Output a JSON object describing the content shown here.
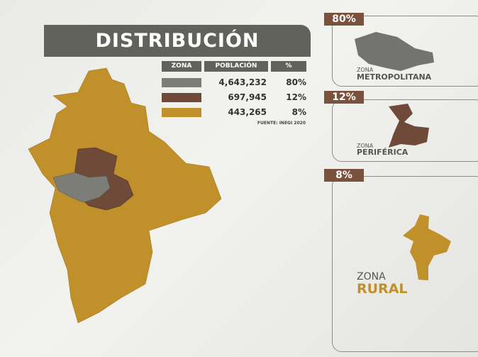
{
  "title": "DISTRIBUCIÓN",
  "table": {
    "header": [
      "ZONA",
      "POBLACIÓN",
      "%"
    ],
    "rows": [
      [
        "4,643,232",
        "80%"
      ],
      [
        "697,945",
        "12%"
      ],
      [
        "443,265",
        "8%"
      ]
    ],
    "source": "FUENTE: INEGI 2020"
  },
  "panels": [
    {
      "percent": "80%",
      "zona": "ZONA",
      "name": "METROPOLITANA"
    },
    {
      "percent": "12%",
      "zona": "ZONA",
      "name": "PERIFÉRICA"
    },
    {
      "percent": "8%",
      "zona": "ZONA",
      "name": "RURAL"
    }
  ]
}
